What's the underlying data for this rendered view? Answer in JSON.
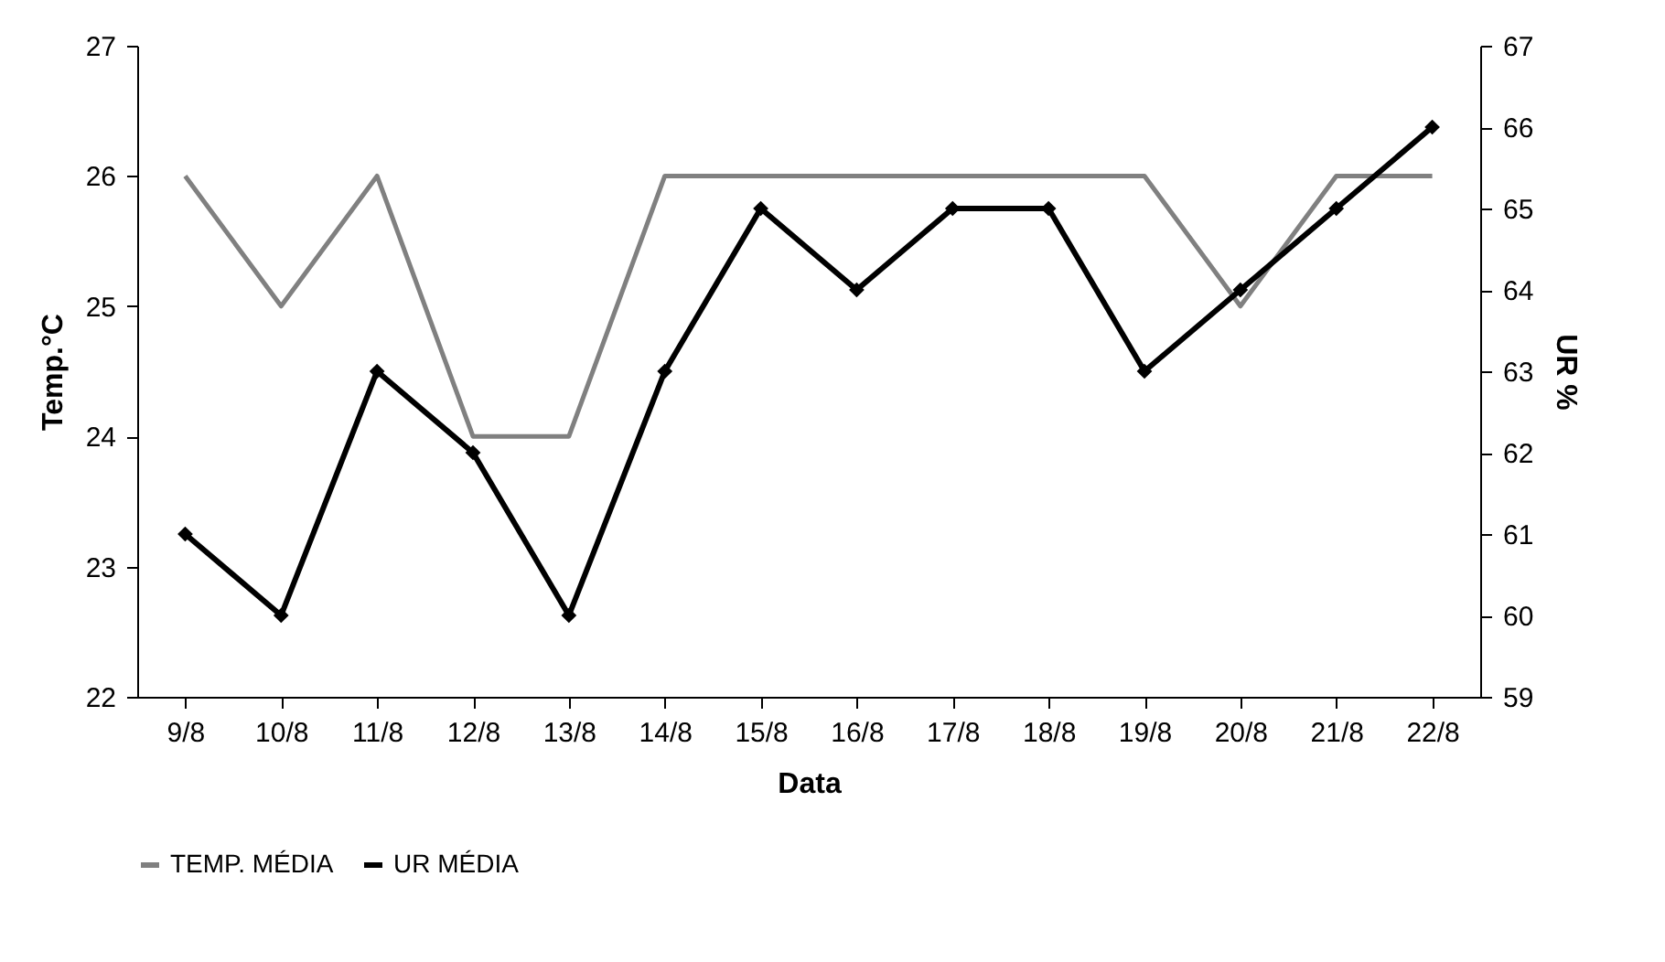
{
  "chart_data": {
    "type": "line",
    "xlabel": "Data",
    "ylabel": "Temp.°C",
    "y2label": "UR %",
    "categories": [
      "9/8",
      "10/8",
      "11/8",
      "12/8",
      "13/8",
      "14/8",
      "15/8",
      "16/8",
      "17/8",
      "18/8",
      "19/8",
      "20/8",
      "21/8",
      "22/8"
    ],
    "series": [
      {
        "name": "TEMP. MÉDIA",
        "color": "#808080",
        "marker": "none",
        "values": [
          26,
          25,
          26,
          24,
          24,
          26,
          26,
          26,
          26,
          26,
          26,
          25,
          26,
          26
        ]
      },
      {
        "name": "UR MÉDIA",
        "color": "#000000",
        "marker": "diamond",
        "axis": "y2",
        "values": [
          61,
          60,
          63,
          62,
          60,
          63,
          65,
          64,
          65,
          65,
          63,
          64,
          65,
          66
        ]
      }
    ],
    "ylim": [
      22,
      27
    ],
    "yticks": [
      22,
      23,
      24,
      25,
      26,
      27
    ],
    "y2lim": [
      59,
      67
    ],
    "y2ticks": [
      59,
      60,
      61,
      62,
      63,
      64,
      65,
      66,
      67
    ],
    "grid": false,
    "legend": "bottom"
  }
}
